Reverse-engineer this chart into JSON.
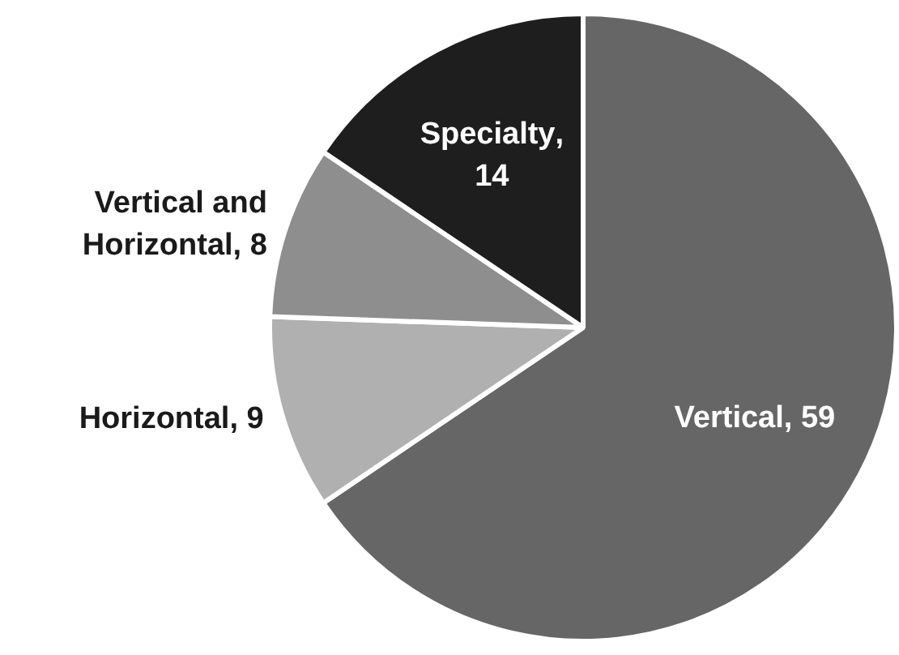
{
  "chart_data": {
    "type": "pie",
    "categories": [
      "Vertical",
      "Horizontal",
      "Vertical and Horizontal",
      "Specialty"
    ],
    "values": [
      59,
      9,
      8,
      14
    ],
    "value_labels": [
      ", 59",
      ", 9",
      ", 8",
      ", 14"
    ],
    "colors": [
      "#666666",
      "#b0b0b0",
      "#8e8e8e",
      "#1e1e1e"
    ],
    "legend": false
  }
}
